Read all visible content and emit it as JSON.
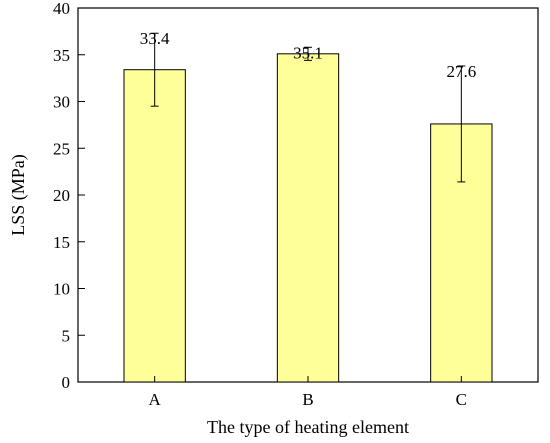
{
  "chart_data": {
    "type": "bar",
    "title": "",
    "xlabel": "The type of heating element",
    "ylabel": "LSS (MPa)",
    "categories": [
      "A",
      "B",
      "C"
    ],
    "values": [
      33.4,
      35.1,
      27.6
    ],
    "error_bars": {
      "lower": [
        29.5,
        34.4,
        21.4
      ],
      "upper": [
        37.3,
        35.8,
        33.8
      ]
    },
    "data_labels": [
      "33.4",
      "35.1",
      "27.6"
    ],
    "ylim": [
      0,
      40
    ],
    "yticks": [
      0,
      5,
      10,
      15,
      20,
      25,
      30,
      35,
      40
    ],
    "ytick_labels": [
      "0",
      "5",
      "10",
      "15",
      "20",
      "25",
      "30",
      "35",
      "40"
    ],
    "grid": false,
    "legend": "none",
    "colors": {
      "bar_fill": "#ffff99",
      "bar_stroke": "#000000",
      "axis": "#000000"
    }
  }
}
